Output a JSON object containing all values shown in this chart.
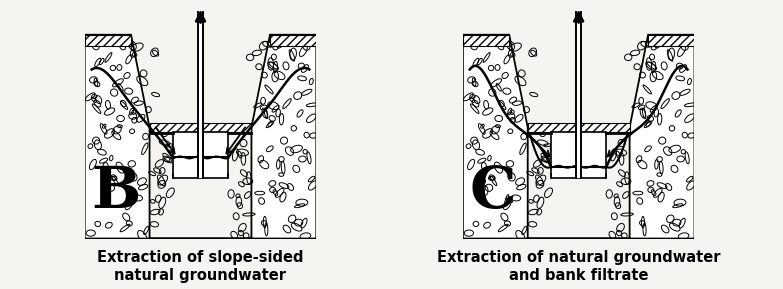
{
  "background_color": "#f5f4f0",
  "label_B": "B",
  "label_C": "C",
  "caption_B": "Extraction of slope-sided\nnatural groundwater",
  "caption_C": "Extraction of natural groundwater\nand bank filtrate",
  "caption_fontsize": 10.5,
  "label_fontsize": 42,
  "fig_width": 7.83,
  "fig_height": 2.89,
  "dpi": 100
}
